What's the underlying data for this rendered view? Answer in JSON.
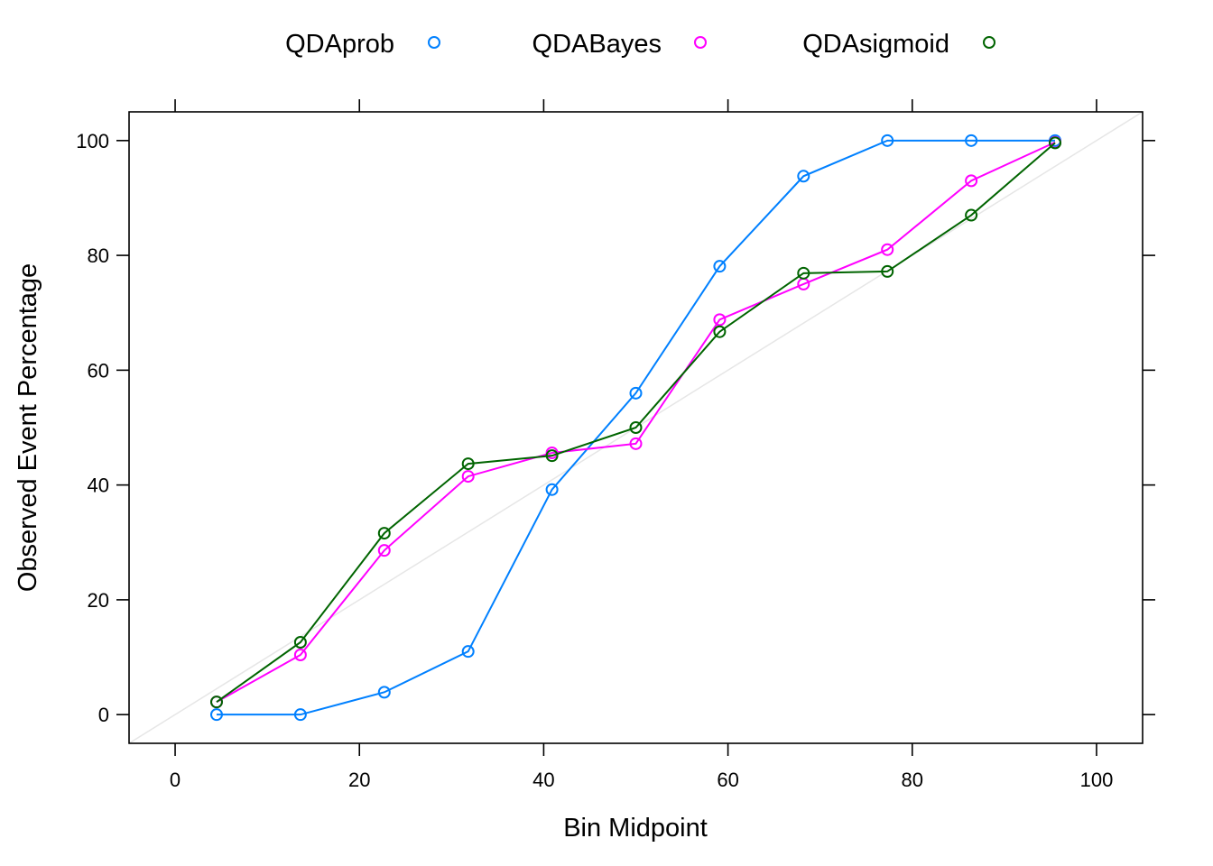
{
  "chart_data": {
    "type": "line",
    "xlabel": "Bin Midpoint",
    "ylabel": "Observed Event Percentage",
    "xlim": [
      -5,
      105
    ],
    "ylim": [
      -5,
      105
    ],
    "xticks": [
      0,
      20,
      40,
      60,
      80,
      100
    ],
    "yticks": [
      0,
      20,
      40,
      60,
      80,
      100
    ],
    "reference_line": {
      "from": [
        -5,
        -5
      ],
      "to": [
        105,
        105
      ],
      "color": "#e6e6e6"
    },
    "legend_position": "top",
    "x": [
      4.5,
      13.6,
      22.7,
      31.8,
      40.9,
      50.0,
      59.1,
      68.2,
      77.3,
      86.4,
      95.5
    ],
    "series": [
      {
        "name": "QDAprob",
        "color": "#0080ff",
        "values": [
          0,
          0,
          3.9,
          11.0,
          39.2,
          56.0,
          78.1,
          93.8,
          100,
          100,
          100
        ]
      },
      {
        "name": "QDABayes",
        "color": "#ff00ff",
        "values": [
          2.2,
          10.4,
          28.6,
          41.5,
          45.6,
          47.2,
          68.8,
          75.0,
          81.0,
          93.0,
          99.7
        ]
      },
      {
        "name": "QDAsigmoid",
        "color": "#006400",
        "values": [
          2.2,
          12.6,
          31.6,
          43.7,
          45.1,
          50.0,
          66.7,
          76.9,
          77.2,
          87.0,
          99.6
        ]
      }
    ]
  }
}
